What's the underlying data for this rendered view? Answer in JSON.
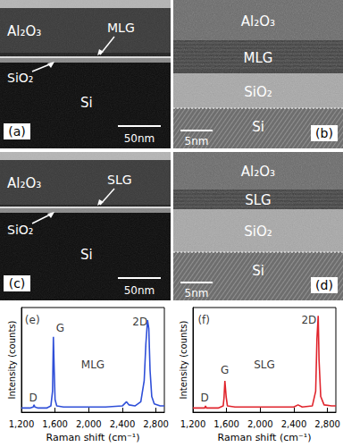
{
  "panels": [
    {
      "label": "(a)",
      "scale_bar": "50nm",
      "layers": [
        "Al₂O₃",
        "MLG",
        "SiO₂",
        "Si"
      ]
    },
    {
      "label": "(b)",
      "scale_bar": "5nm",
      "layers": [
        "Al₂O₃",
        "MLG",
        "SiO₂",
        "Si"
      ]
    },
    {
      "label": "(c)",
      "scale_bar": "50nm",
      "layers": [
        "Al₂O₃",
        "SLG",
        "SiO₂",
        "Si"
      ]
    },
    {
      "label": "(d)",
      "scale_bar": "5nm",
      "layers": [
        "Al₂O₃",
        "SLG",
        "SiO₂",
        "Si"
      ]
    }
  ],
  "chart_data": [
    {
      "type": "line",
      "x_label": "Raman shift (cm⁻¹)",
      "y_label": "Intensity (counts)",
      "x": [
        1200,
        1300,
        1340,
        1350,
        1360,
        1400,
        1500,
        1550,
        1570,
        1580,
        1590,
        1600,
        1620,
        1700,
        1800,
        2000,
        2200,
        2400,
        2450,
        2480,
        2550,
        2620,
        2660,
        2680,
        2700,
        2715,
        2730,
        2750,
        2780,
        2850,
        2900
      ],
      "values": [
        4,
        4,
        5,
        7,
        5,
        4,
        4,
        6,
        20,
        72,
        40,
        12,
        6,
        5,
        5,
        5,
        5,
        6,
        10,
        7,
        6,
        10,
        30,
        65,
        88,
        80,
        40,
        15,
        8,
        6,
        6
      ],
      "color": "#2f4fd8",
      "xlim": [
        1200,
        2900
      ],
      "xticks": [
        1200,
        1600,
        2000,
        2400,
        2800
      ],
      "ylim": [
        0,
        100
      ],
      "tick_labels": "x",
      "annotations": [
        {
          "text": "(e)",
          "x": 1330,
          "y": 88
        },
        {
          "text": "D",
          "x": 1340,
          "y": 14
        },
        {
          "text": "G",
          "x": 1660,
          "y": 80
        },
        {
          "text": "MLG",
          "x": 2050,
          "y": 45
        },
        {
          "text": "2D",
          "x": 2610,
          "y": 86
        }
      ]
    },
    {
      "type": "line",
      "x_label": "Raman shift (cm⁻¹)",
      "y_label": "Intensity (counts)",
      "x": [
        1200,
        1300,
        1340,
        1350,
        1360,
        1400,
        1500,
        1560,
        1570,
        1580,
        1595,
        1610,
        1700,
        1800,
        2000,
        2200,
        2400,
        2450,
        2500,
        2620,
        2660,
        2675,
        2690,
        2700,
        2720,
        2760,
        2850,
        2900
      ],
      "values": [
        4,
        4,
        4,
        6,
        4,
        4,
        4,
        6,
        14,
        30,
        15,
        6,
        5,
        5,
        5,
        5,
        5,
        7,
        5,
        6,
        20,
        70,
        92,
        50,
        15,
        7,
        6,
        6
      ],
      "color": "#e0242c",
      "xlim": [
        1200,
        2900
      ],
      "xticks": [
        1200,
        1600,
        2000,
        2400,
        2800
      ],
      "ylim": [
        0,
        100
      ],
      "tick_labels": "x",
      "annotations": [
        {
          "text": "(f)",
          "x": 1330,
          "y": 88
        },
        {
          "text": "D",
          "x": 1340,
          "y": 14
        },
        {
          "text": "G",
          "x": 1580,
          "y": 40
        },
        {
          "text": "SLG",
          "x": 2050,
          "y": 45
        },
        {
          "text": "2D",
          "x": 2580,
          "y": 88
        }
      ]
    }
  ]
}
